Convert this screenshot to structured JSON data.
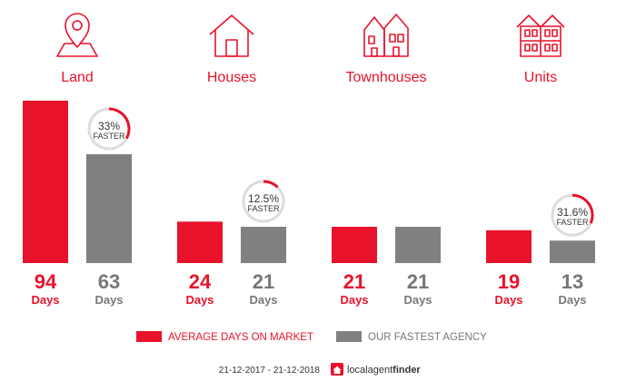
{
  "chart_data": {
    "type": "bar",
    "categories": [
      "Land",
      "Houses",
      "Townhouses",
      "Units"
    ],
    "category_icons": [
      "map-pin-icon",
      "house-icon",
      "townhouse-icon",
      "units-icon"
    ],
    "series": [
      {
        "name": "AVERAGE DAYS ON MARKET",
        "values": [
          94,
          24,
          21,
          19
        ],
        "color": "#e8132b"
      },
      {
        "name": "OUR FASTEST AGENCY",
        "values": [
          63,
          21,
          21,
          13
        ],
        "color": "#808080"
      }
    ],
    "value_unit": "Days",
    "faster": [
      {
        "index": 0,
        "label": "33%",
        "pct": 33
      },
      {
        "index": 1,
        "label": "12.5%",
        "pct": 12.5
      },
      {
        "index": 3,
        "label": "31.6%",
        "pct": 31.6
      }
    ],
    "faster_text": "FASTER",
    "ylim": [
      0,
      94
    ],
    "legend_position": "bottom"
  },
  "footer": {
    "date_range": "21-12-2017 - 21-12-2018",
    "brand_light": "localagent",
    "brand_bold": "finder",
    "brand_icon": "home-logo-icon"
  }
}
